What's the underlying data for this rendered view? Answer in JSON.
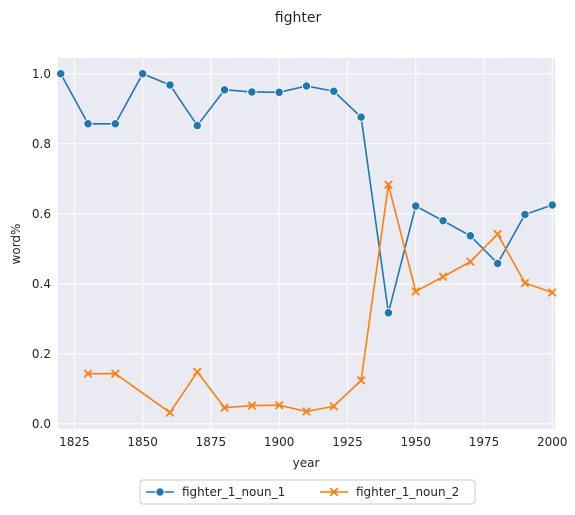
{
  "chart_data": {
    "type": "line",
    "title": "fighter",
    "xlabel": "year",
    "ylabel": "word%",
    "xlim": [
      1819,
      2001
    ],
    "ylim": [
      -0.015,
      1.045
    ],
    "xticks": [
      1825,
      1850,
      1875,
      1900,
      1925,
      1950,
      1975,
      2000
    ],
    "yticks": [
      0.0,
      0.2,
      0.4,
      0.6,
      0.8,
      1.0
    ],
    "xtick_labels": [
      "1825",
      "1850",
      "1875",
      "1900",
      "1925",
      "1950",
      "1975",
      "2000"
    ],
    "ytick_labels": [
      "0.0",
      "0.2",
      "0.4",
      "0.6",
      "0.8",
      "1.0"
    ],
    "grid": true,
    "legend_position": "bottom-center",
    "series": [
      {
        "name": "fighter_1_noun_1",
        "color": "#1f77b4",
        "marker": "circle",
        "x": [
          1820,
          1830,
          1840,
          1850,
          1860,
          1870,
          1880,
          1890,
          1900,
          1910,
          1920,
          1930,
          1940,
          1950,
          1960,
          1970,
          1980,
          1990,
          2000
        ],
        "y": [
          1.0,
          0.857,
          0.857,
          1.0,
          0.968,
          0.852,
          0.954,
          0.948,
          0.947,
          0.965,
          0.95,
          0.876,
          0.317,
          0.622,
          0.58,
          0.537,
          0.458,
          0.598,
          0.625
        ]
      },
      {
        "name": "fighter_1_noun_2",
        "color": "#ff7f0e",
        "marker": "x",
        "x": [
          1830,
          1840,
          1860,
          1870,
          1880,
          1890,
          1900,
          1910,
          1920,
          1930,
          1940,
          1950,
          1960,
          1970,
          1980,
          1990,
          2000
        ],
        "y": [
          0.143,
          0.143,
          0.032,
          0.148,
          0.046,
          0.052,
          0.053,
          0.035,
          0.05,
          0.124,
          0.683,
          0.378,
          0.42,
          0.463,
          0.542,
          0.402,
          0.375
        ]
      }
    ]
  }
}
